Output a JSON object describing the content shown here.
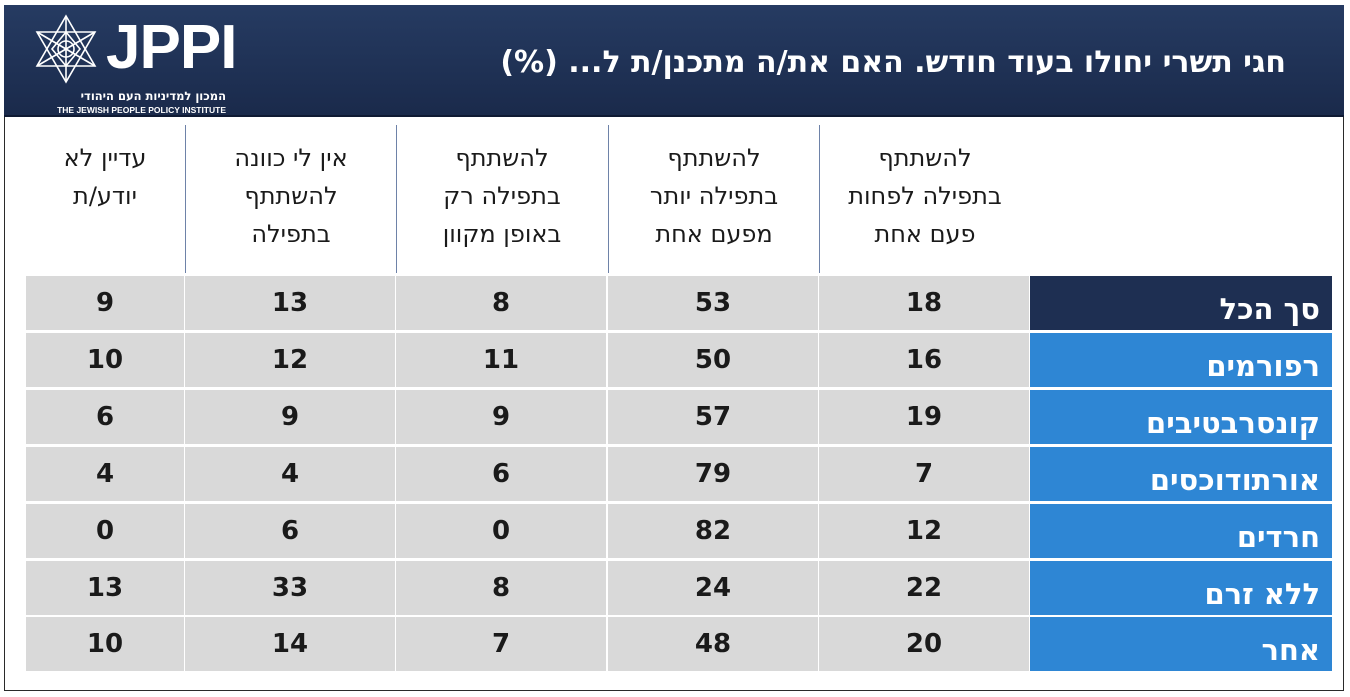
{
  "header": {
    "title": "חגי תשרי יחולו בעוד חודש. האם את/ה מתכנן/ת ל... (%)",
    "logo": {
      "wordmark": "JPPI",
      "hebrew_name": "המכון למדיניות העם היהודי",
      "english_name": "THE JEWISH PEOPLE POLICY INSTITUTE"
    }
  },
  "colors": {
    "header_bg": "#1f3158",
    "total_label_bg": "#1e2f52",
    "row_label_bg": "#2e86d4",
    "cell_bg": "#d9d9d9"
  },
  "chart_data": {
    "type": "table",
    "title": "חגי תשרי יחולו בעוד חודש. האם את/ה מתכנן/ת ל... (%)",
    "columns": [
      "להשתתף בתפילה לפחות פעם אחת",
      "להשתתף בתפילה יותר מפעם אחת",
      "להשתתף בתפילה רק באופן מקוון",
      "אין לי כוונה להשתתף בתפילה",
      "עדיין לא יודע/ת"
    ],
    "column_lines": [
      "להשתתף\nבתפילה לפחות\nפעם אחת",
      "להשתתף\nבתפילה יותר\nמפעם אחת",
      "להשתתף\nבתפילה רק\nבאופן מקוון",
      "אין לי כוונה\nלהשתתף\nבתפילה",
      "עדיין לא\nיודע/ת"
    ],
    "rows": [
      {
        "label": "סך הכל",
        "values": [
          18,
          53,
          8,
          13,
          9
        ]
      },
      {
        "label": "רפורמים",
        "values": [
          16,
          50,
          11,
          12,
          10
        ]
      },
      {
        "label": "קונסרבטיבים",
        "values": [
          19,
          57,
          9,
          9,
          6
        ]
      },
      {
        "label": "אורתודוכסים",
        "values": [
          7,
          79,
          6,
          4,
          4
        ]
      },
      {
        "label": "חרדים",
        "values": [
          12,
          82,
          0,
          6,
          0
        ]
      },
      {
        "label": "ללא זרם",
        "values": [
          22,
          24,
          8,
          33,
          13
        ]
      },
      {
        "label": "אחר",
        "values": [
          20,
          48,
          7,
          14,
          10
        ]
      }
    ]
  }
}
